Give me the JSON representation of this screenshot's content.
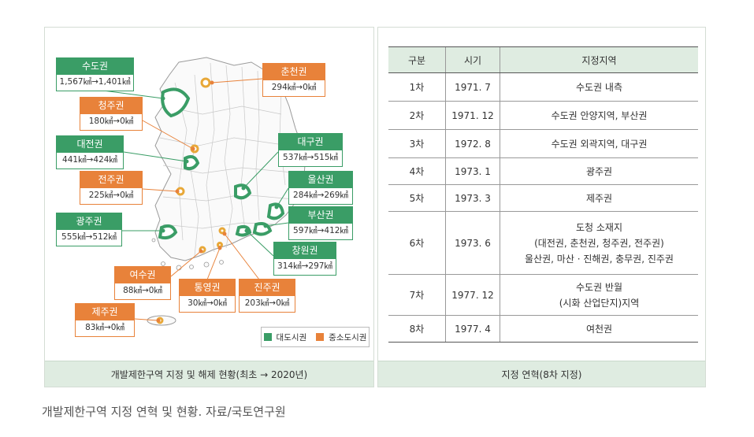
{
  "map_panel": {
    "caption": "개발제한구역 지정 및 해제 현황(최초 → 2020년)",
    "regions": [
      {
        "name": "수도권",
        "change": "1,567㎢→1,401㎢",
        "type": "대도시권"
      },
      {
        "name": "춘천권",
        "change": "294㎢→0㎢",
        "type": "중소도시권"
      },
      {
        "name": "청주권",
        "change": "180㎢→0㎢",
        "type": "중소도시권"
      },
      {
        "name": "대전권",
        "change": "441㎢→424㎢",
        "type": "대도시권"
      },
      {
        "name": "대구권",
        "change": "537㎢→515㎢",
        "type": "대도시권"
      },
      {
        "name": "전주권",
        "change": "225㎢→0㎢",
        "type": "중소도시권"
      },
      {
        "name": "울산권",
        "change": "284㎢→269㎢",
        "type": "대도시권"
      },
      {
        "name": "광주권",
        "change": "555㎢→512㎢",
        "type": "대도시권"
      },
      {
        "name": "부산권",
        "change": "597㎢→412㎢",
        "type": "대도시권"
      },
      {
        "name": "창원권",
        "change": "314㎢→297㎢",
        "type": "대도시권"
      },
      {
        "name": "여수권",
        "change": "88㎢→0㎢",
        "type": "중소도시권"
      },
      {
        "name": "통영권",
        "change": "30㎢→0㎢",
        "type": "중소도시권"
      },
      {
        "name": "진주권",
        "change": "203㎢→0㎢",
        "type": "중소도시권"
      },
      {
        "name": "제주권",
        "change": "83㎢→0㎢",
        "type": "중소도시권"
      }
    ],
    "legend": {
      "metro": "대도시권",
      "small": "중소도시권"
    },
    "colors": {
      "metro": "#3a9d66",
      "small": "#e8823a"
    }
  },
  "table_panel": {
    "caption": "지정 연혁(8차 지정)",
    "headers": [
      "구분",
      "시기",
      "지정지역"
    ],
    "rows": [
      {
        "order": "1차",
        "date": "1971. 7",
        "area": [
          "수도권 내측"
        ]
      },
      {
        "order": "2차",
        "date": "1971. 12",
        "area": [
          "수도권 안양지역, 부산권"
        ]
      },
      {
        "order": "3차",
        "date": "1972. 8",
        "area": [
          "수도권 외곽지역, 대구권"
        ]
      },
      {
        "order": "4차",
        "date": "1973. 1",
        "area": [
          "광주권"
        ]
      },
      {
        "order": "5차",
        "date": "1973. 3",
        "area": [
          "제주권"
        ]
      },
      {
        "order": "6차",
        "date": "1973. 6",
        "area": [
          "도청 소재지",
          "(대전권, 춘천권, 청주권, 전주권)",
          "울산권, 마산 · 진해권, 충무권, 진주권"
        ]
      },
      {
        "order": "7차",
        "date": "1977. 12",
        "area": [
          "수도권 반월",
          "(시화 산업단지)지역"
        ]
      },
      {
        "order": "8차",
        "date": "1977. 4",
        "area": [
          "여천권"
        ]
      }
    ]
  },
  "footer_caption": "개발제한구역 지정 연혁 및 현황. 자료/국토연구원"
}
